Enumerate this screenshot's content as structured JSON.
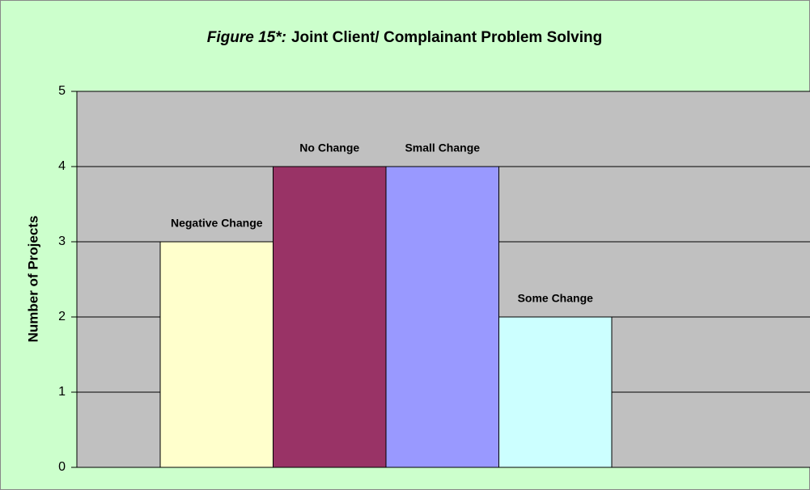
{
  "chart_data": {
    "type": "bar",
    "title_prefix": "Figure 15*:",
    "title": "Joint Client/ Complainant Problem Solving",
    "y_label": "Number of Projects",
    "categories": [
      "Negative Change",
      "No Change",
      "Small Change",
      "Some Change"
    ],
    "values": [
      3,
      4,
      4,
      2
    ],
    "colors": [
      "#ffffcc",
      "#993366",
      "#9999ff",
      "#ccffff"
    ],
    "ylim": [
      0,
      5
    ],
    "yticks": [
      0,
      1,
      2,
      3,
      4,
      5
    ],
    "grid": true
  }
}
